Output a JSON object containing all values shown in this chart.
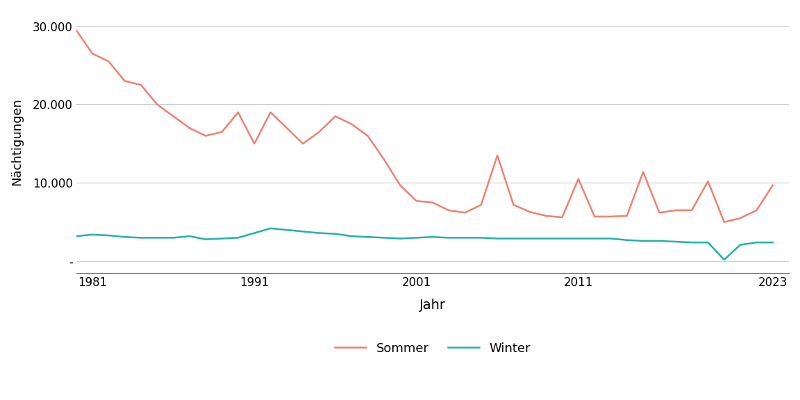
{
  "title": "",
  "xlabel": "Jahr",
  "ylabel": "Nächtigungen",
  "sommer_color": "#F08070",
  "winter_color": "#20B2AA",
  "legend_sommer": "Sommer",
  "legend_winter": "Winter",
  "background_color": "#ffffff",
  "grid_color": "#cccccc",
  "yticks": [
    0,
    10000,
    20000,
    30000
  ],
  "ytick_labels": [
    "-",
    "10.000",
    "20.000",
    "30.000"
  ],
  "xticks": [
    1981,
    1991,
    2001,
    2011,
    2023
  ],
  "ylim": [
    -1500,
    32000
  ],
  "xlim": [
    1980,
    2024
  ],
  "years": [
    1980,
    1981,
    1982,
    1983,
    1984,
    1985,
    1986,
    1987,
    1988,
    1989,
    1990,
    1991,
    1992,
    1993,
    1994,
    1995,
    1996,
    1997,
    1998,
    1999,
    2000,
    2001,
    2002,
    2003,
    2004,
    2005,
    2006,
    2007,
    2008,
    2009,
    2010,
    2011,
    2012,
    2013,
    2014,
    2015,
    2016,
    2017,
    2018,
    2019,
    2020,
    2021,
    2022,
    2023
  ],
  "sommer": [
    29500,
    26500,
    25500,
    23000,
    22500,
    20000,
    18500,
    17000,
    16000,
    16500,
    19000,
    15000,
    19000,
    17000,
    15000,
    16500,
    18500,
    17500,
    16000,
    13000,
    9700,
    7700,
    7500,
    6500,
    6200,
    7200,
    13500,
    7200,
    6300,
    5800,
    5600,
    10500,
    5700,
    5700,
    5800,
    11400,
    6200,
    6500,
    6500,
    10200,
    5000,
    5500,
    6500,
    9700
  ],
  "winter": [
    3200,
    3400,
    3300,
    3100,
    3000,
    3000,
    3000,
    3200,
    2800,
    2900,
    3000,
    3600,
    4200,
    4000,
    3800,
    3600,
    3500,
    3200,
    3100,
    3000,
    2900,
    3000,
    3100,
    3000,
    3000,
    3000,
    2900,
    2900,
    2900,
    2900,
    2900,
    2900,
    2900,
    2900,
    2700,
    2600,
    2600,
    2500,
    2400,
    2400,
    200,
    2100,
    2400,
    2400
  ]
}
